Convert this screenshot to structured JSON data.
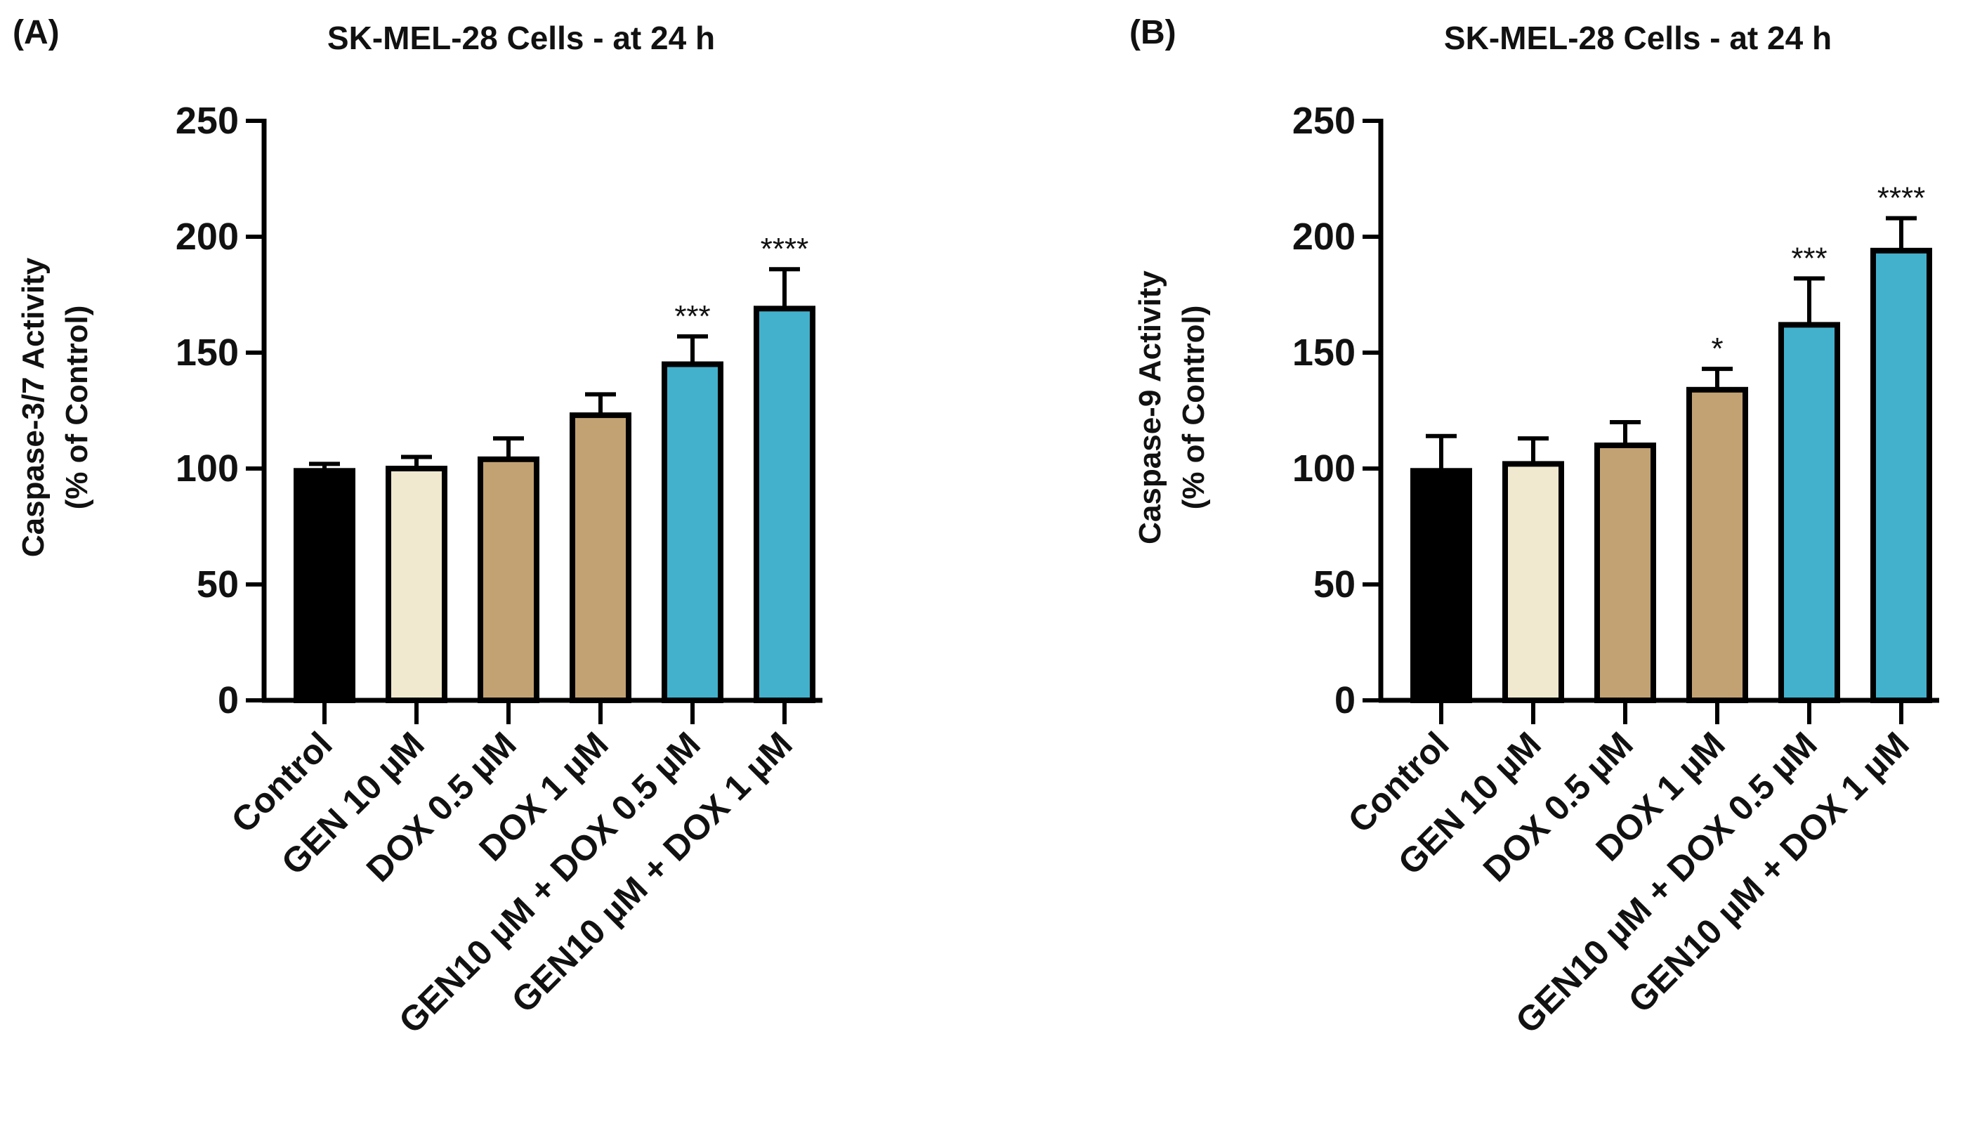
{
  "figure": {
    "colors": {
      "Control": "#000000",
      "GEN 10 µM": "#f0e8cf",
      "DOX": "#c2a273",
      "GEN10 µM + DOX": "#43b1cc",
      "stroke": "#000000"
    }
  },
  "chart_data": [
    {
      "type": "bar",
      "panel_label": "(A)",
      "title": "SK-MEL-28 Cells - at 24 h",
      "ylabel_line1": "Caspase-3/7 Activity",
      "ylabel_line2": "(% of Control)",
      "xlabel": "",
      "ylim": [
        0,
        250
      ],
      "yticks": [
        0,
        50,
        100,
        150,
        200,
        250
      ],
      "categories": [
        "Control",
        "GEN 10 µM",
        "DOX 0.5 µM",
        "DOX 1 µM",
        "GEN10 µM + DOX 0.5 µM",
        "GEN10 µM + DOX 1 µM"
      ],
      "values": [
        99,
        100,
        104,
        123,
        145,
        169
      ],
      "errors": [
        3,
        5,
        9,
        9,
        12,
        17
      ],
      "significance": [
        "",
        "",
        "",
        "",
        "***",
        "****"
      ],
      "bar_colors": [
        "#000000",
        "#f0e8cf",
        "#c2a273",
        "#c2a273",
        "#43b1cc",
        "#43b1cc"
      ]
    },
    {
      "type": "bar",
      "panel_label": "(B)",
      "title": "SK-MEL-28 Cells - at 24 h",
      "ylabel_line1": "Caspase-9 Activity",
      "ylabel_line2": "(% of Control)",
      "xlabel": "",
      "ylim": [
        0,
        250
      ],
      "yticks": [
        0,
        50,
        100,
        150,
        200,
        250
      ],
      "categories": [
        "Control",
        "GEN 10 µM",
        "DOX 0.5 µM",
        "DOX 1 µM",
        "GEN10 µM + DOX 0.5 µM",
        "GEN10 µM + DOX 1 µM"
      ],
      "values": [
        99,
        102,
        110,
        134,
        162,
        194
      ],
      "errors": [
        15,
        11,
        10,
        9,
        20,
        14
      ],
      "significance": [
        "",
        "",
        "",
        "*",
        "***",
        "****"
      ],
      "bar_colors": [
        "#000000",
        "#f0e8cf",
        "#c2a273",
        "#c2a273",
        "#43b1cc",
        "#43b1cc"
      ]
    }
  ]
}
